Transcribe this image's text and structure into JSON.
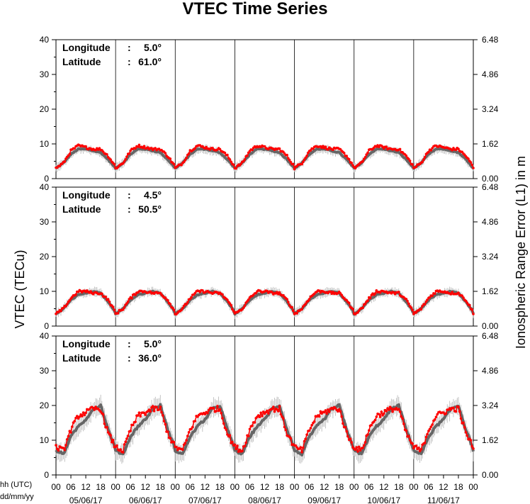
{
  "chart_data": {
    "type": "line",
    "title": "VTEC Time Series",
    "ylabel_left": "VTEC (TECu)",
    "ylabel_right": "Ionospheric Range Error (L1) in m",
    "xlabel_line1": "hh (UTC)",
    "xlabel_line2": "dd/mm/yy",
    "hour_ticks": [
      "00",
      "06",
      "12",
      "18"
    ],
    "end_tick": "00",
    "dates": [
      "05/06/17",
      "06/06/17",
      "07/06/17",
      "08/06/17",
      "09/06/17",
      "10/06/17",
      "11/06/17"
    ],
    "ylim": [
      0,
      40
    ],
    "yticks_left": [
      "0",
      "10",
      "20",
      "30",
      "40"
    ],
    "yticks_right": [
      "0.00",
      "1.62",
      "3.24",
      "4.86",
      "6.48"
    ],
    "longitude_label": "Longitude",
    "latitude_label": "Latitude",
    "colors": {
      "measured": "#ff0000",
      "model": "#666666",
      "error_bars": "#aaaaaa",
      "axes": "#000000"
    },
    "panels": [
      {
        "longitude": "5.0°",
        "latitude": "61.0°",
        "daily_profile_hours": [
          0,
          3,
          6,
          9,
          12,
          15,
          18,
          21,
          24
        ],
        "series": [
          {
            "name": "measured",
            "daily_values": [
              3.0,
              4.5,
              8.0,
              9.5,
              9.0,
              8.5,
              8.5,
              6.5,
              3.5
            ]
          },
          {
            "name": "model",
            "daily_values": [
              3.0,
              4.5,
              7.0,
              8.5,
              8.5,
              8.0,
              7.5,
              5.5,
              3.0
            ]
          }
        ]
      },
      {
        "longitude": "4.5°",
        "latitude": "50.5°",
        "daily_profile_hours": [
          0,
          3,
          6,
          9,
          12,
          15,
          18,
          21,
          24
        ],
        "series": [
          {
            "name": "measured",
            "daily_values": [
              3.5,
              5.0,
              8.0,
              10.0,
              10.0,
              9.5,
              9.5,
              7.5,
              4.0
            ]
          },
          {
            "name": "model",
            "daily_values": [
              3.5,
              5.0,
              7.5,
              9.0,
              9.5,
              10.0,
              9.5,
              7.0,
              4.0
            ]
          }
        ]
      },
      {
        "longitude": "5.0°",
        "latitude": "36.0°",
        "daily_profile_hours": [
          0,
          3,
          6,
          9,
          12,
          15,
          18,
          21,
          24
        ],
        "series": [
          {
            "name": "measured",
            "daily_values": [
              8.0,
              7.0,
              13.0,
              17.0,
              18.0,
              19.0,
              19.0,
              12.0,
              8.0
            ]
          },
          {
            "name": "model",
            "daily_values": [
              7.0,
              6.0,
              11.0,
              14.0,
              16.0,
              19.0,
              20.0,
              13.0,
              7.5
            ]
          }
        ]
      }
    ]
  }
}
